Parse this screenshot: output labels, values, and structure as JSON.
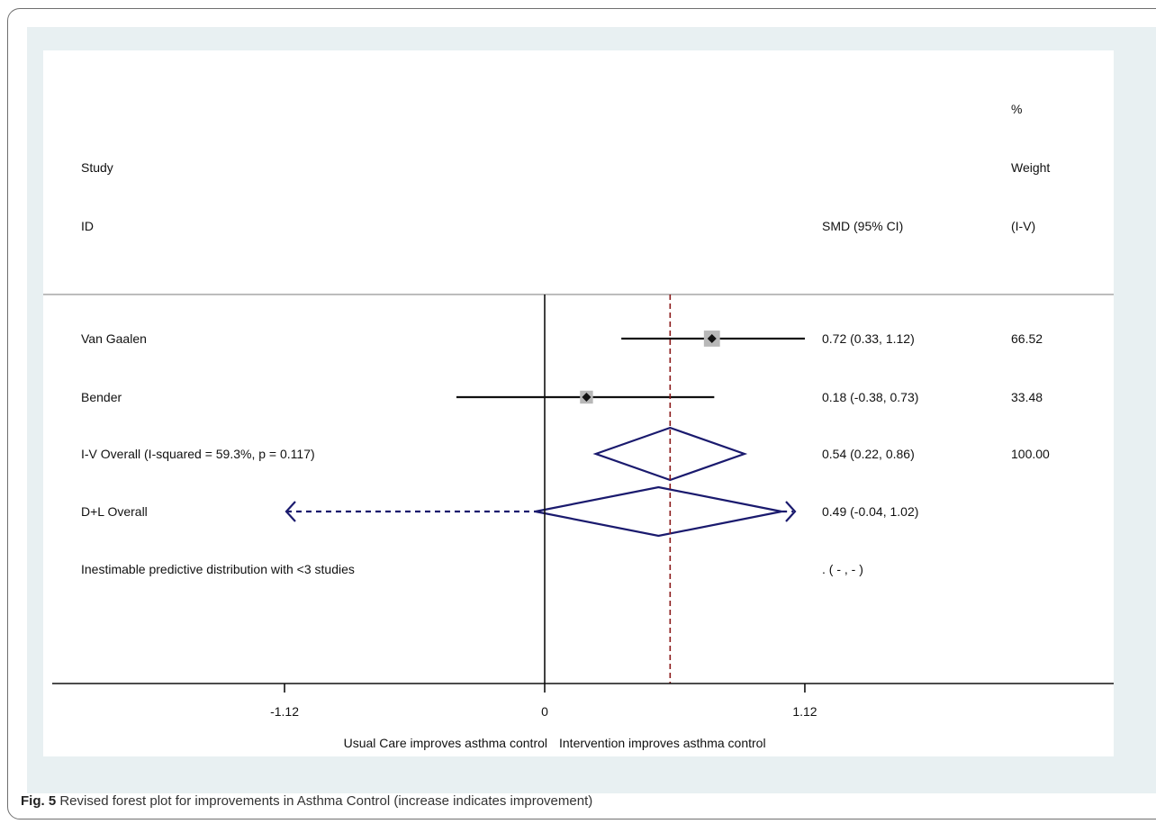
{
  "chart_data": {
    "type": "forest",
    "header": {
      "col_study": [
        "Study",
        "ID"
      ],
      "col_estimate": "SMD (95% CI)",
      "col_weight": [
        "%",
        "Weight",
        "(I-V)"
      ]
    },
    "rows": [
      {
        "label": "Van Gaalen",
        "estimate": 0.72,
        "lower": 0.33,
        "upper": 1.12,
        "ci_text": "0.72 (0.33, 1.12)",
        "weight_text": "66.52",
        "weight": 66.52,
        "kind": "study"
      },
      {
        "label": "Bender",
        "estimate": 0.18,
        "lower": -0.38,
        "upper": 0.73,
        "ci_text": "0.18 (-0.38, 0.73)",
        "weight_text": "33.48",
        "weight": 33.48,
        "kind": "study"
      },
      {
        "label": "I-V Overall  (I-squared = 59.3%, p = 0.117)",
        "estimate": 0.54,
        "lower": 0.22,
        "upper": 0.86,
        "ci_text": "0.54 (0.22, 0.86)",
        "weight_text": "100.00",
        "kind": "overall"
      },
      {
        "label": "D+L Overall",
        "estimate": 0.49,
        "lower": -0.04,
        "upper": 1.02,
        "ci_text": "0.49 (-0.04, 1.02)",
        "weight_text": "",
        "kind": "overall-dl"
      },
      {
        "label": "Inestimable predictive distribution with <3 studies",
        "ci_text": ".     ( - , - )",
        "weight_text": "",
        "kind": "note"
      }
    ],
    "xticks": [
      -1.12,
      0,
      1.12
    ],
    "xtick_labels": [
      "-1.12",
      "0",
      "1.12"
    ],
    "xlim": [
      -2.2,
      2.3
    ],
    "reference_line": 0.54,
    "xlabel_left": "Usual Care improves asthma control",
    "xlabel_right": "Intervention improves asthma control"
  },
  "caption": {
    "label": "Fig. 5",
    "text": " Revised forest plot for improvements in Asthma Control (increase indicates improvement)"
  },
  "colors": {
    "overall": "#1a1a6e",
    "reference": "#8b1a1a",
    "box": "#b8b8b8"
  }
}
